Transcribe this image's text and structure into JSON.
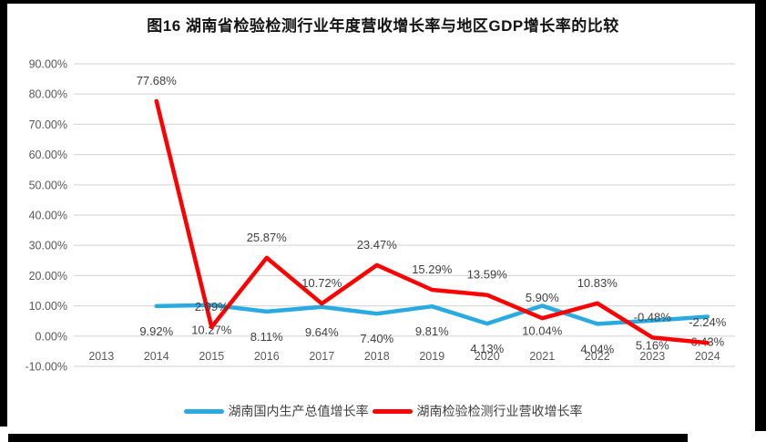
{
  "chart_data": {
    "type": "line",
    "title": "图16  湖南省检验检测行业年度营收增长率与地区GDP增长率的比较",
    "categories": [
      "2013",
      "2014",
      "2015",
      "2016",
      "2017",
      "2018",
      "2019",
      "2020",
      "2021",
      "2022",
      "2023",
      "2024"
    ],
    "series": [
      {
        "name": "湖南国内生产总值增长率",
        "color": "#29ABE2",
        "label_position": "below",
        "values": [
          null,
          9.92,
          10.27,
          8.11,
          9.64,
          7.4,
          9.81,
          4.13,
          10.04,
          4.04,
          5.16,
          6.43
        ]
      },
      {
        "name": "湖南检验检测行业营收增长率",
        "color": "#FE0000",
        "label_position": "above",
        "values": [
          null,
          77.68,
          2.99,
          25.87,
          10.72,
          23.47,
          15.29,
          13.59,
          5.9,
          10.83,
          -0.48,
          -2.24
        ]
      }
    ],
    "ylim": [
      -10,
      90
    ],
    "ytick_step": 10,
    "ytick_format": "0.00%",
    "grid": true,
    "data_labels": true,
    "legend_position": "bottom",
    "gridline_color": "#D9D9D9",
    "axis_text_color": "#595959",
    "label_text_color": "#404040"
  }
}
